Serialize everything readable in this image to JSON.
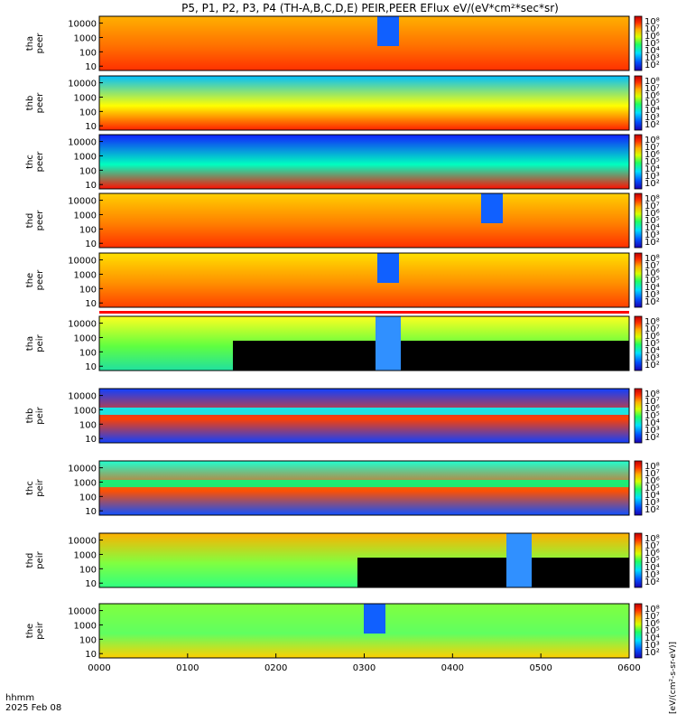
{
  "title": "P5, P1, P2, P3, P4 (TH-A,B,C,D,E) PEIR,PEER EFlux eV/(eV*cm²*sec*sr)",
  "x_axis": {
    "label_line1": "hhmm",
    "label_line2": "2025 Feb 08",
    "ticks": [
      "0000",
      "0100",
      "0200",
      "0300",
      "0400",
      "0500",
      "0600"
    ]
  },
  "colorbar_units": "[eV/(cm²-s-sr-eV)]",
  "y_ticks": [
    "10000",
    "1000",
    "100",
    "10"
  ],
  "colorbar_ticks": [
    "10⁸",
    "10⁷",
    "10⁶",
    "10⁵",
    "10⁴",
    "10³",
    "10²"
  ],
  "colors": {
    "low": "#0000ff",
    "mid": "#00ff80",
    "high": "#ff0000",
    "saturated": "#a00000"
  },
  "chart_data": {
    "type": "heatmap",
    "x_range": [
      "0000",
      "0600"
    ],
    "y_scale": "log",
    "y_range": [
      5,
      30000
    ],
    "panels": [
      {
        "label_line1": "tha",
        "label_line2": "peer"
      },
      {
        "label_line1": "thb",
        "label_line2": "peer"
      },
      {
        "label_line1": "thc",
        "label_line2": "peer"
      },
      {
        "label_line1": "thd",
        "label_line2": "peer"
      },
      {
        "label_line1": "the",
        "label_line2": "peer"
      },
      {
        "label_line1": "tha",
        "label_line2": "peir"
      },
      {
        "label_line1": "thb",
        "label_line2": "peir"
      },
      {
        "label_line1": "thc",
        "label_line2": "peir"
      },
      {
        "label_line1": "thd",
        "label_line2": "peir"
      },
      {
        "label_line1": "the",
        "label_line2": "peir"
      }
    ]
  }
}
